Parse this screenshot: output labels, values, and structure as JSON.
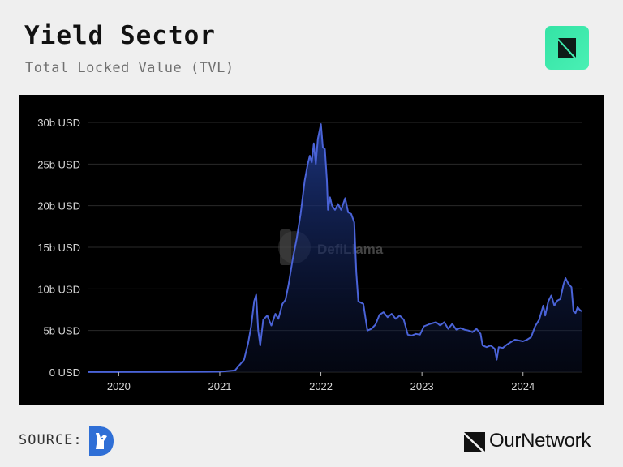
{
  "header": {
    "title": "Yield Sector",
    "subtitle": "Total Locked Value (TVL)"
  },
  "footer": {
    "source_label": "SOURCE:",
    "brand_name": "OurNetwork"
  },
  "watermark": "DefiLlama",
  "colors": {
    "background": "#efefef",
    "panel": "#000000",
    "line": "#4a63d8",
    "logo_green": "#3ee9ab",
    "source_logo_blue": "#2f6fd6"
  },
  "icons": {
    "header_logo": "ournetwork-badge-icon",
    "source_logo": "defillama-logo-icon",
    "brand_mark": "ournetwork-mark-icon"
  },
  "chart_data": {
    "type": "area",
    "xlabel": "",
    "ylabel": "",
    "x_ticks": [
      "2020",
      "2021",
      "2022",
      "2023",
      "2024"
    ],
    "y_ticks": [
      "0 USD",
      "5b USD",
      "10b USD",
      "15b USD",
      "20b USD",
      "25b USD",
      "30b USD"
    ],
    "xlim": [
      2019.7,
      2024.58
    ],
    "ylim": [
      0,
      30
    ],
    "grid": true,
    "legend": "none",
    "series": [
      {
        "units": "billion USD",
        "points": [
          [
            2019.7,
            0.01
          ],
          [
            2020.5,
            0.02
          ],
          [
            2021.0,
            0.05
          ],
          [
            2021.15,
            0.2
          ],
          [
            2021.24,
            1.5
          ],
          [
            2021.28,
            3.5
          ],
          [
            2021.31,
            5.5
          ],
          [
            2021.34,
            8.5
          ],
          [
            2021.36,
            9.3
          ],
          [
            2021.38,
            5.0
          ],
          [
            2021.4,
            3.2
          ],
          [
            2021.43,
            6.3
          ],
          [
            2021.47,
            6.8
          ],
          [
            2021.51,
            5.6
          ],
          [
            2021.55,
            7.0
          ],
          [
            2021.58,
            6.4
          ],
          [
            2021.62,
            8.2
          ],
          [
            2021.65,
            8.7
          ],
          [
            2021.68,
            10.5
          ],
          [
            2021.72,
            13.5
          ],
          [
            2021.76,
            16.0
          ],
          [
            2021.8,
            19.0
          ],
          [
            2021.84,
            23.0
          ],
          [
            2021.87,
            25.0
          ],
          [
            2021.89,
            26.0
          ],
          [
            2021.91,
            25.2
          ],
          [
            2021.93,
            27.5
          ],
          [
            2021.95,
            25.0
          ],
          [
            2021.97,
            28.0
          ],
          [
            2022.0,
            29.8
          ],
          [
            2022.02,
            27.0
          ],
          [
            2022.04,
            26.8
          ],
          [
            2022.06,
            23.0
          ],
          [
            2022.07,
            19.5
          ],
          [
            2022.09,
            21.0
          ],
          [
            2022.11,
            20.0
          ],
          [
            2022.14,
            19.5
          ],
          [
            2022.17,
            20.2
          ],
          [
            2022.2,
            19.5
          ],
          [
            2022.24,
            20.9
          ],
          [
            2022.27,
            19.2
          ],
          [
            2022.3,
            19.0
          ],
          [
            2022.33,
            18.0
          ],
          [
            2022.35,
            12.0
          ],
          [
            2022.37,
            8.5
          ],
          [
            2022.42,
            8.2
          ],
          [
            2022.46,
            5.0
          ],
          [
            2022.5,
            5.2
          ],
          [
            2022.54,
            5.7
          ],
          [
            2022.58,
            6.9
          ],
          [
            2022.62,
            7.2
          ],
          [
            2022.66,
            6.6
          ],
          [
            2022.7,
            7.0
          ],
          [
            2022.74,
            6.4
          ],
          [
            2022.78,
            6.8
          ],
          [
            2022.82,
            6.3
          ],
          [
            2022.86,
            4.5
          ],
          [
            2022.9,
            4.4
          ],
          [
            2022.94,
            4.6
          ],
          [
            2022.98,
            4.5
          ],
          [
            2023.02,
            5.5
          ],
          [
            2023.08,
            5.8
          ],
          [
            2023.14,
            6.0
          ],
          [
            2023.18,
            5.6
          ],
          [
            2023.22,
            6.0
          ],
          [
            2023.26,
            5.2
          ],
          [
            2023.3,
            5.8
          ],
          [
            2023.34,
            5.1
          ],
          [
            2023.38,
            5.3
          ],
          [
            2023.42,
            5.1
          ],
          [
            2023.46,
            5.0
          ],
          [
            2023.5,
            4.8
          ],
          [
            2023.54,
            5.2
          ],
          [
            2023.58,
            4.6
          ],
          [
            2023.6,
            3.2
          ],
          [
            2023.64,
            3.0
          ],
          [
            2023.68,
            3.2
          ],
          [
            2023.72,
            2.8
          ],
          [
            2023.74,
            1.5
          ],
          [
            2023.76,
            3.0
          ],
          [
            2023.8,
            2.9
          ],
          [
            2023.84,
            3.3
          ],
          [
            2023.88,
            3.6
          ],
          [
            2023.92,
            3.9
          ],
          [
            2023.96,
            3.8
          ],
          [
            2024.0,
            3.7
          ],
          [
            2024.04,
            3.9
          ],
          [
            2024.08,
            4.2
          ],
          [
            2024.12,
            5.5
          ],
          [
            2024.16,
            6.3
          ],
          [
            2024.2,
            8.0
          ],
          [
            2024.22,
            6.8
          ],
          [
            2024.25,
            8.5
          ],
          [
            2024.28,
            9.2
          ],
          [
            2024.31,
            8.0
          ],
          [
            2024.34,
            8.6
          ],
          [
            2024.37,
            8.8
          ],
          [
            2024.4,
            10.5
          ],
          [
            2024.42,
            11.3
          ],
          [
            2024.45,
            10.6
          ],
          [
            2024.48,
            10.2
          ],
          [
            2024.5,
            7.3
          ],
          [
            2024.52,
            7.1
          ],
          [
            2024.54,
            7.8
          ],
          [
            2024.56,
            7.5
          ],
          [
            2024.58,
            7.3
          ]
        ]
      }
    ]
  }
}
